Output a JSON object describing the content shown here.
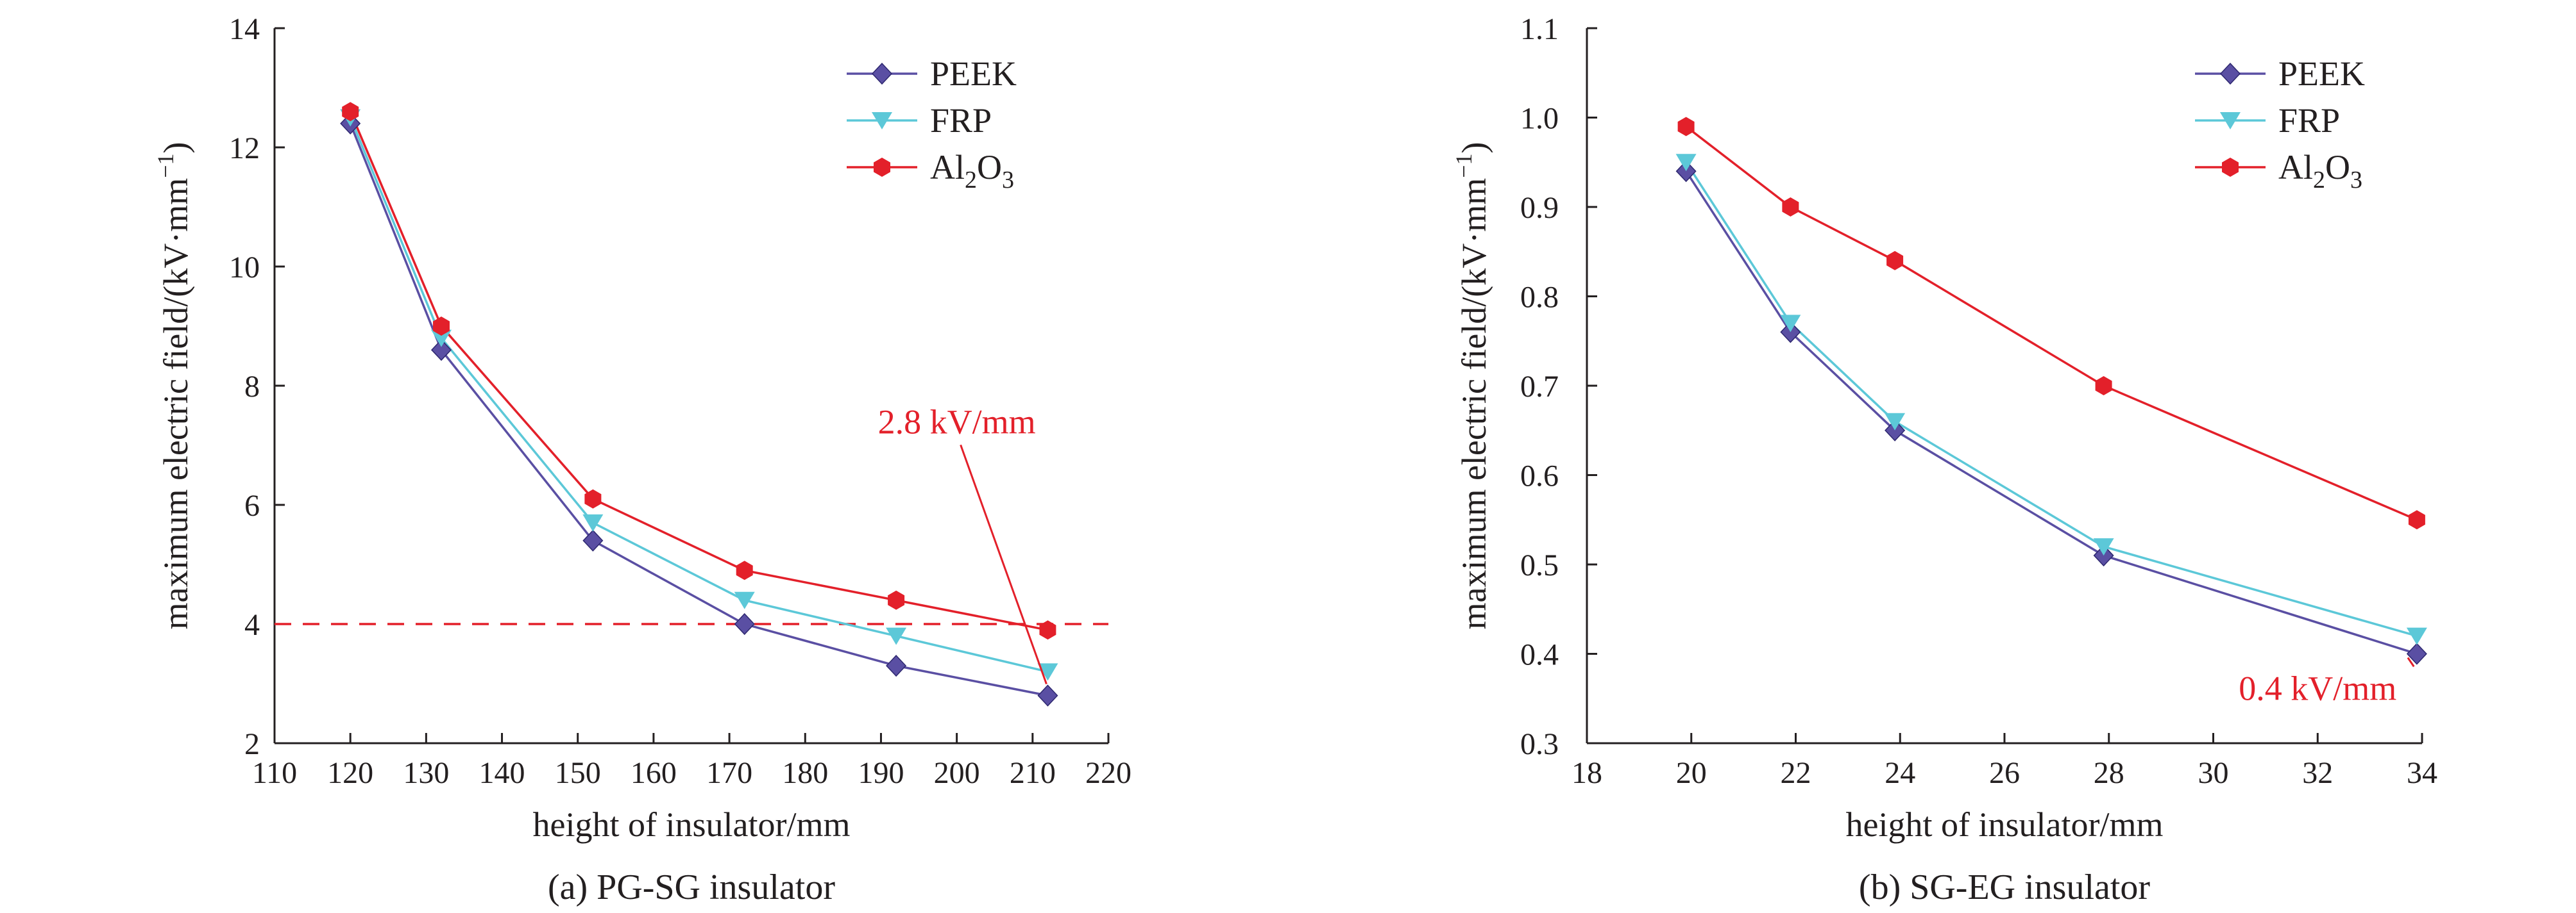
{
  "colors": {
    "PEEK": "#5a4fa3",
    "FRP": "#5cc8d8",
    "Al2O3": "#e3202a",
    "axis": "#231f20"
  },
  "chart_data": [
    {
      "type": "line",
      "caption": "(a) PG-SG insulator",
      "xlabel": "height of insulator/mm",
      "ylabel_parts": {
        "main": "maximum electric field/(kV·mm",
        "sup": "−1",
        "close": ")"
      },
      "xlim": [
        110,
        220
      ],
      "ylim": [
        2,
        14
      ],
      "xticks": [
        110,
        120,
        130,
        140,
        150,
        160,
        170,
        180,
        190,
        200,
        210,
        220
      ],
      "yticks": [
        2,
        4,
        6,
        8,
        10,
        12,
        14
      ],
      "legend_position": "top-right",
      "x": [
        120,
        132,
        152,
        172,
        192,
        212
      ],
      "series": [
        {
          "name": "PEEK",
          "marker": "diamond",
          "values": [
            12.4,
            8.6,
            5.4,
            4.0,
            3.3,
            2.8
          ]
        },
        {
          "name": "FRP",
          "marker": "triangle-down",
          "values": [
            12.5,
            8.8,
            5.7,
            4.4,
            3.8,
            3.2
          ]
        },
        {
          "name": "Al2O3",
          "label_parts": [
            "Al",
            "2",
            "O",
            "3"
          ],
          "marker": "hexagon",
          "values": [
            12.6,
            9.0,
            6.1,
            4.9,
            4.4,
            3.9
          ]
        }
      ],
      "reference_line": {
        "y": 4,
        "style": "dashed",
        "color": "#e3202a"
      },
      "annotation": {
        "text": "2.8 kV/mm",
        "point": [
          212,
          2.8
        ],
        "text_anchor": [
          200,
          7.2
        ]
      }
    },
    {
      "type": "line",
      "caption": "(b) SG-EG insulator",
      "xlabel": "height of insulator/mm",
      "ylabel_parts": {
        "main": "maximum electric field/(kV·mm",
        "sup": "−1",
        "close": ")"
      },
      "xlim": [
        18,
        34
      ],
      "ylim": [
        0.3,
        1.1
      ],
      "xticks": [
        18,
        20,
        22,
        24,
        26,
        28,
        30,
        32,
        34
      ],
      "yticks": [
        0.3,
        0.4,
        0.5,
        0.6,
        0.7,
        0.8,
        0.9,
        1.0,
        1.1
      ],
      "ytick_labels": [
        "0.3",
        "0.4",
        "0.5",
        "0.6",
        "0.7",
        "0.8",
        "0.9",
        "1.0",
        "1.1"
      ],
      "legend_position": "top-right",
      "x": [
        19.9,
        21.9,
        23.9,
        27.9,
        33.9
      ],
      "series": [
        {
          "name": "PEEK",
          "marker": "diamond",
          "values": [
            0.94,
            0.76,
            0.65,
            0.51,
            0.4
          ]
        },
        {
          "name": "FRP",
          "marker": "triangle-down",
          "values": [
            0.95,
            0.77,
            0.66,
            0.52,
            0.42
          ]
        },
        {
          "name": "Al2O3",
          "label_parts": [
            "Al",
            "2",
            "O",
            "3"
          ],
          "marker": "hexagon",
          "values": [
            0.99,
            0.9,
            0.84,
            0.7,
            0.55
          ]
        }
      ],
      "annotation": {
        "text": "0.4 kV/mm",
        "point": [
          33.9,
          0.4
        ],
        "text_anchor": [
          32.0,
          0.37
        ]
      }
    }
  ]
}
